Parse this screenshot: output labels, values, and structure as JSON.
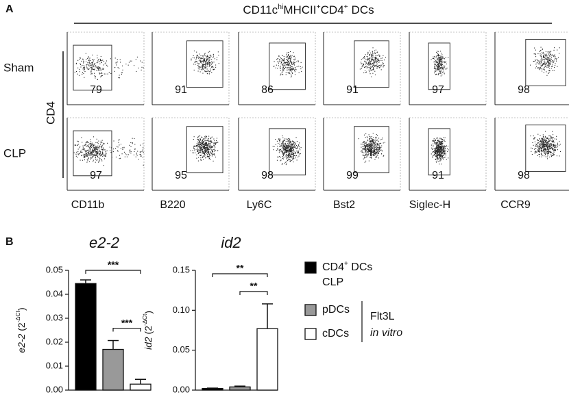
{
  "panel_a": {
    "label": "A",
    "header": [
      {
        "text": "CD11c"
      },
      {
        "text": "hi",
        "sup": true
      },
      {
        "text": "MHCII"
      },
      {
        "text": "+",
        "sup": true
      },
      {
        "text": "CD4"
      },
      {
        "text": "+",
        "sup": true
      },
      {
        "text": " DCs"
      }
    ],
    "y_label": "CD4",
    "rows": [
      "Sham",
      "CLP"
    ],
    "columns": [
      "CD11b",
      "B220",
      "Ly6C",
      "Bst2",
      "Siglec-H",
      "CCR9"
    ],
    "percentages": [
      [
        79,
        91,
        86,
        91,
        97,
        98
      ],
      [
        97,
        95,
        98,
        99,
        91,
        98
      ]
    ]
  },
  "panel_b": {
    "label": "B"
  },
  "chart_data": [
    {
      "type": "bar",
      "title": "e2-2",
      "y_label": [
        {
          "text": "e2-2",
          "italic": true
        },
        {
          "text": " (2"
        },
        {
          "text": "-ΔCt",
          "sup": true
        },
        {
          "text": ")"
        }
      ],
      "values": [
        0.0445,
        0.017,
        0.0025
      ],
      "errors": [
        0.0015,
        0.0037,
        0.002
      ],
      "colors": [
        "#000000",
        "#999999",
        "#ffffff"
      ],
      "ylim": [
        0,
        0.05
      ],
      "yticks": [
        {
          "value": 0,
          "label": "0.00"
        },
        {
          "value": 0.01,
          "label": "0.01"
        },
        {
          "value": 0.02,
          "label": "0.02"
        },
        {
          "value": 0.03,
          "label": "0.03"
        },
        {
          "value": 0.04,
          "label": "0.04"
        },
        {
          "value": 0.05,
          "label": "0.05"
        }
      ],
      "annotations": [
        {
          "text": "***",
          "between": [
            0,
            2
          ]
        },
        {
          "text": "***",
          "between": [
            1,
            2
          ]
        }
      ]
    },
    {
      "type": "bar",
      "title": "id2",
      "y_label": [
        {
          "text": "id2",
          "italic": true
        },
        {
          "text": " (2"
        },
        {
          "text": "-ΔCt",
          "sup": true
        },
        {
          "text": ")"
        }
      ],
      "values": [
        0.002,
        0.004,
        0.077
      ],
      "errors": [
        0.0005,
        0.001,
        0.031
      ],
      "colors": [
        "#000000",
        "#999999",
        "#ffffff"
      ],
      "ylim": [
        0,
        0.15
      ],
      "yticks": [
        {
          "value": 0,
          "label": "0.00"
        },
        {
          "value": 0.05,
          "label": "0.05"
        },
        {
          "value": 0.1,
          "label": "0.10"
        },
        {
          "value": 0.15,
          "label": "0.15"
        }
      ],
      "annotations": [
        {
          "text": "**",
          "between": [
            0,
            2
          ]
        },
        {
          "text": "**",
          "between": [
            1,
            2
          ]
        }
      ]
    }
  ],
  "legend": {
    "items": [
      {
        "parts": [
          {
            "text": "CD4"
          },
          {
            "text": "+",
            "sup": true
          },
          {
            "text": " DCs"
          }
        ],
        "line2": "CLP",
        "color": "#000000"
      },
      {
        "parts": [
          {
            "text": "pDCs"
          }
        ],
        "color": "#999999"
      },
      {
        "parts": [
          {
            "text": "cDCs"
          }
        ],
        "color": "#ffffff"
      }
    ],
    "group": [
      "Flt3L",
      "in vitro"
    ]
  }
}
